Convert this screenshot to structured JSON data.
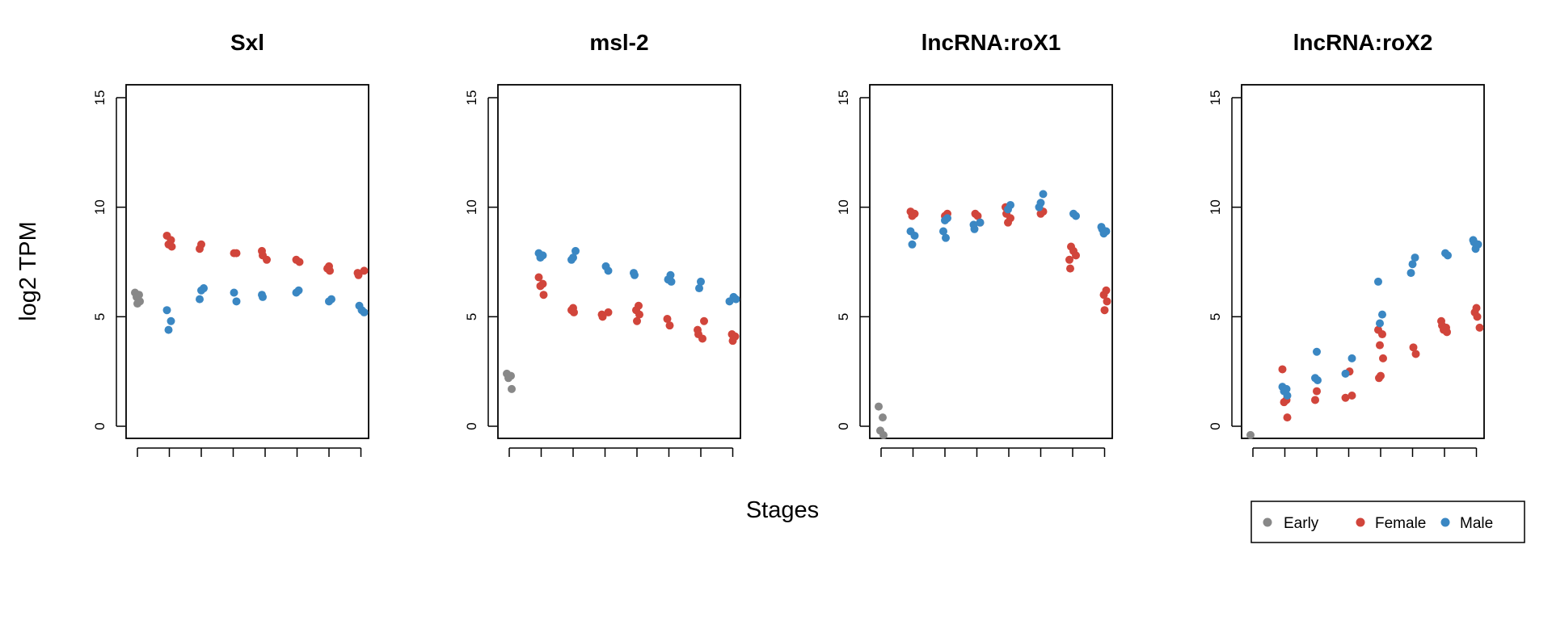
{
  "figure": {
    "ylabel": "log2 TPM",
    "xlabel": "Stages"
  },
  "legend": {
    "position": "bottom-right",
    "items": [
      {
        "label": "Early",
        "color": "#888888"
      },
      {
        "label": "Female",
        "color": "#D1453B"
      },
      {
        "label": "Male",
        "color": "#3A87C3"
      }
    ]
  },
  "chart_data": [
    {
      "type": "scatter",
      "title": "Sxl",
      "ylim": [
        -0.5,
        15.5
      ],
      "yticks": [
        0,
        5,
        10,
        15
      ],
      "stages": 8,
      "series": [
        {
          "name": "Early",
          "color": "#888888",
          "points": [
            [
              1,
              6.1
            ],
            [
              1,
              6.0
            ],
            [
              1,
              5.9
            ],
            [
              1,
              5.7
            ],
            [
              1,
              5.6
            ]
          ]
        },
        {
          "name": "Female",
          "color": "#D1453B",
          "points": [
            [
              2,
              8.7
            ],
            [
              2,
              8.5
            ],
            [
              2,
              8.3
            ],
            [
              2,
              8.2
            ],
            [
              3,
              8.3
            ],
            [
              3,
              8.1
            ],
            [
              4,
              7.9
            ],
            [
              4,
              7.9
            ],
            [
              5,
              8.0
            ],
            [
              5,
              7.8
            ],
            [
              5,
              7.6
            ],
            [
              6,
              7.6
            ],
            [
              6,
              7.5
            ],
            [
              7,
              7.3
            ],
            [
              7,
              7.2
            ],
            [
              7,
              7.1
            ],
            [
              8,
              7.1
            ],
            [
              8,
              7.0
            ],
            [
              8,
              6.9
            ]
          ]
        },
        {
          "name": "Male",
          "color": "#3A87C3",
          "points": [
            [
              2,
              5.3
            ],
            [
              2,
              4.8
            ],
            [
              2,
              4.4
            ],
            [
              3,
              6.3
            ],
            [
              3,
              6.2
            ],
            [
              3,
              5.8
            ],
            [
              4,
              6.1
            ],
            [
              4,
              5.7
            ],
            [
              5,
              6.0
            ],
            [
              5,
              5.9
            ],
            [
              6,
              6.2
            ],
            [
              6,
              6.1
            ],
            [
              7,
              5.8
            ],
            [
              7,
              5.7
            ],
            [
              8,
              5.5
            ],
            [
              8,
              5.3
            ],
            [
              8,
              5.2
            ]
          ]
        }
      ]
    },
    {
      "type": "scatter",
      "title": "msl-2",
      "ylim": [
        -0.5,
        15.5
      ],
      "yticks": [
        0,
        5,
        10,
        15
      ],
      "stages": 8,
      "series": [
        {
          "name": "Early",
          "color": "#888888",
          "points": [
            [
              1,
              2.4
            ],
            [
              1,
              2.3
            ],
            [
              1,
              2.2
            ],
            [
              1,
              1.7
            ]
          ]
        },
        {
          "name": "Female",
          "color": "#D1453B",
          "points": [
            [
              2,
              6.8
            ],
            [
              2,
              6.5
            ],
            [
              2,
              6.4
            ],
            [
              2,
              6.0
            ],
            [
              3,
              5.4
            ],
            [
              3,
              5.3
            ],
            [
              3,
              5.2
            ],
            [
              4,
              5.2
            ],
            [
              4,
              5.1
            ],
            [
              4,
              5.0
            ],
            [
              5,
              5.5
            ],
            [
              5,
              5.3
            ],
            [
              5,
              5.1
            ],
            [
              5,
              4.8
            ],
            [
              6,
              4.9
            ],
            [
              6,
              4.6
            ],
            [
              7,
              4.8
            ],
            [
              7,
              4.4
            ],
            [
              7,
              4.2
            ],
            [
              7,
              4.0
            ],
            [
              8,
              4.2
            ],
            [
              8,
              4.1
            ],
            [
              8,
              3.9
            ]
          ]
        },
        {
          "name": "Male",
          "color": "#3A87C3",
          "points": [
            [
              2,
              7.9
            ],
            [
              2,
              7.8
            ],
            [
              2,
              7.7
            ],
            [
              3,
              8.0
            ],
            [
              3,
              7.7
            ],
            [
              3,
              7.6
            ],
            [
              4,
              7.3
            ],
            [
              4,
              7.1
            ],
            [
              5,
              7.0
            ],
            [
              5,
              6.9
            ],
            [
              6,
              6.9
            ],
            [
              6,
              6.7
            ],
            [
              6,
              6.6
            ],
            [
              7,
              6.6
            ],
            [
              7,
              6.3
            ],
            [
              8,
              5.9
            ],
            [
              8,
              5.8
            ],
            [
              8,
              5.7
            ]
          ]
        }
      ]
    },
    {
      "type": "scatter",
      "title": "lncRNA:roX1",
      "ylim": [
        -0.5,
        15.5
      ],
      "yticks": [
        0,
        5,
        10,
        15
      ],
      "stages": 8,
      "series": [
        {
          "name": "Early",
          "color": "#888888",
          "points": [
            [
              1,
              0.9
            ],
            [
              1,
              0.4
            ],
            [
              1,
              -0.2
            ],
            [
              1,
              -0.5
            ]
          ]
        },
        {
          "name": "Female",
          "color": "#D1453B",
          "points": [
            [
              2,
              9.8
            ],
            [
              2,
              9.7
            ],
            [
              2,
              9.6
            ],
            [
              3,
              9.7
            ],
            [
              3,
              9.6
            ],
            [
              4,
              9.7
            ],
            [
              4,
              9.6
            ],
            [
              4,
              9.3
            ],
            [
              5,
              10.0
            ],
            [
              5,
              9.7
            ],
            [
              5,
              9.5
            ],
            [
              5,
              9.3
            ],
            [
              6,
              9.8
            ],
            [
              6,
              9.7
            ],
            [
              7,
              8.2
            ],
            [
              7,
              8.0
            ],
            [
              7,
              7.8
            ],
            [
              7,
              7.6
            ],
            [
              7,
              7.2
            ],
            [
              8,
              6.2
            ],
            [
              8,
              6.0
            ],
            [
              8,
              5.7
            ],
            [
              8,
              5.3
            ]
          ]
        },
        {
          "name": "Male",
          "color": "#3A87C3",
          "points": [
            [
              2,
              8.9
            ],
            [
              2,
              8.7
            ],
            [
              2,
              8.3
            ],
            [
              3,
              9.5
            ],
            [
              3,
              9.4
            ],
            [
              3,
              8.9
            ],
            [
              3,
              8.6
            ],
            [
              4,
              9.3
            ],
            [
              4,
              9.2
            ],
            [
              4,
              9.0
            ],
            [
              5,
              10.1
            ],
            [
              5,
              9.9
            ],
            [
              6,
              10.6
            ],
            [
              6,
              10.2
            ],
            [
              6,
              10.0
            ],
            [
              7,
              9.7
            ],
            [
              7,
              9.6
            ],
            [
              8,
              9.1
            ],
            [
              8,
              9.0
            ],
            [
              8,
              8.9
            ],
            [
              8,
              8.8
            ]
          ]
        }
      ]
    },
    {
      "type": "scatter",
      "title": "lncRNA:roX2",
      "ylim": [
        -0.5,
        15.5
      ],
      "yticks": [
        0,
        5,
        10,
        15
      ],
      "stages": 8,
      "series": [
        {
          "name": "Early",
          "color": "#888888",
          "points": [
            [
              1,
              -0.4
            ]
          ]
        },
        {
          "name": "Female",
          "color": "#D1453B",
          "points": [
            [
              2,
              2.6
            ],
            [
              2,
              1.2
            ],
            [
              2,
              1.1
            ],
            [
              2,
              0.4
            ],
            [
              3,
              1.6
            ],
            [
              3,
              1.2
            ],
            [
              4,
              2.5
            ],
            [
              4,
              1.4
            ],
            [
              4,
              1.3
            ],
            [
              5,
              4.4
            ],
            [
              5,
              4.2
            ],
            [
              5,
              3.7
            ],
            [
              5,
              3.1
            ],
            [
              5,
              2.3
            ],
            [
              5,
              2.2
            ],
            [
              6,
              3.6
            ],
            [
              6,
              3.3
            ],
            [
              7,
              4.8
            ],
            [
              7,
              4.6
            ],
            [
              7,
              4.5
            ],
            [
              7,
              4.4
            ],
            [
              7,
              4.3
            ],
            [
              8,
              5.4
            ],
            [
              8,
              5.2
            ],
            [
              8,
              5.0
            ],
            [
              8,
              4.5
            ]
          ]
        },
        {
          "name": "Male",
          "color": "#3A87C3",
          "points": [
            [
              2,
              1.8
            ],
            [
              2,
              1.7
            ],
            [
              2,
              1.6
            ],
            [
              2,
              1.4
            ],
            [
              3,
              3.4
            ],
            [
              3,
              2.2
            ],
            [
              3,
              2.1
            ],
            [
              4,
              3.1
            ],
            [
              4,
              2.4
            ],
            [
              5,
              6.6
            ],
            [
              5,
              5.1
            ],
            [
              5,
              4.7
            ],
            [
              6,
              7.7
            ],
            [
              6,
              7.4
            ],
            [
              6,
              7.0
            ],
            [
              7,
              7.9
            ],
            [
              7,
              7.8
            ],
            [
              8,
              8.5
            ],
            [
              8,
              8.4
            ],
            [
              8,
              8.3
            ],
            [
              8,
              8.1
            ]
          ]
        }
      ]
    }
  ]
}
